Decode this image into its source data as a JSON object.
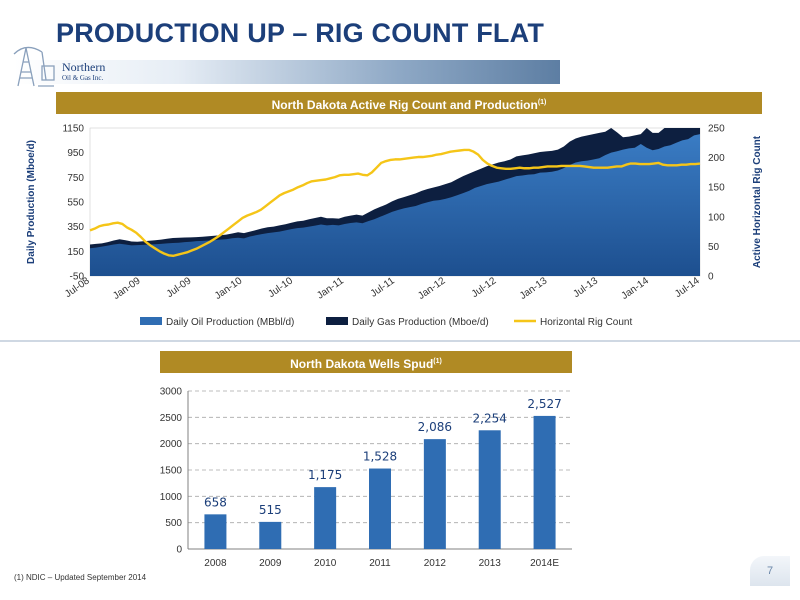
{
  "slide": {
    "title": "PRODUCTION UP – RIG COUNT FLAT",
    "logo_name": "Northern",
    "logo_sub": "Oil & Gas Inc.",
    "footnote": "(1)   NDIC – Updated September 2014",
    "page_number": "7",
    "colors": {
      "title": "#1c3f7a",
      "section_bar": "#b08a24",
      "oil": "#2f6db3",
      "gas": "#0d1f40",
      "rig": "#f5c518",
      "bar": "#2f6db3"
    }
  },
  "chart_data": [
    {
      "type": "area",
      "title": "North Dakota Active Rig Count and Production",
      "title_sup": "(1)",
      "ylabel": "Daily Production (Mboe/d)",
      "y2label": "Active Horizontal Rig Count",
      "ylim": [
        -50,
        1150
      ],
      "yticks": [
        -50,
        150,
        350,
        550,
        750,
        950,
        1150
      ],
      "y2lim": [
        0,
        250
      ],
      "y2ticks": [
        0,
        50,
        100,
        150,
        200,
        250
      ],
      "x_tick_labels": [
        "Jul-08",
        "Jan-09",
        "Jul-09",
        "Jan-10",
        "Jul-10",
        "Jan-11",
        "Jul-11",
        "Jan-12",
        "Jul-12",
        "Jan-13",
        "Jul-13",
        "Jan-14",
        "Jul-14"
      ],
      "legend": [
        "Daily Oil Production (MBbl/d)",
        "Daily Gas Production (Mboe/d)",
        "Horizontal Rig Count"
      ],
      "series": [
        {
          "name": "Daily Oil Production (MBbl/d)",
          "values": [
            175,
            180,
            188,
            196,
            205,
            212,
            205,
            198,
            200,
            202,
            205,
            207,
            210,
            215,
            218,
            220,
            225,
            228,
            233,
            235,
            238,
            241,
            245,
            248,
            256,
            260,
            255,
            270,
            280,
            290,
            298,
            304,
            310,
            320,
            330,
            338,
            342,
            350,
            358,
            368,
            360,
            365,
            360,
            372,
            380,
            385,
            378,
            395,
            410,
            430,
            450,
            470,
            485,
            498,
            508,
            518,
            535,
            548,
            560,
            565,
            575,
            588,
            605,
            622,
            640,
            665,
            680,
            695,
            705,
            715,
            730,
            745,
            760,
            765,
            772,
            775,
            788,
            790,
            795,
            805,
            825,
            850,
            870,
            880,
            885,
            895,
            905,
            930,
            950,
            962,
            975,
            985,
            990,
            1020,
            990,
            970,
            980,
            1000,
            1010,
            1030,
            1050,
            1060,
            1090,
            1100
          ]
        },
        {
          "name": "Daily Gas Production (Mboe/d)",
          "values": [
            205,
            210,
            215,
            225,
            238,
            248,
            240,
            230,
            228,
            232,
            236,
            240,
            245,
            252,
            258,
            260,
            262,
            263,
            265,
            268,
            272,
            276,
            280,
            285,
            295,
            305,
            298,
            310,
            322,
            335,
            345,
            350,
            360,
            370,
            382,
            393,
            398,
            410,
            420,
            430,
            418,
            418,
            415,
            430,
            440,
            448,
            440,
            465,
            490,
            510,
            530,
            555,
            575,
            590,
            605,
            620,
            640,
            655,
            668,
            680,
            695,
            710,
            735,
            760,
            780,
            800,
            820,
            840,
            855,
            870,
            880,
            895,
            920,
            928,
            935,
            945,
            955,
            960,
            965,
            975,
            1000,
            1040,
            1065,
            1080,
            1090,
            1100,
            1110,
            1120,
            1150,
            1115,
            1075,
            1080,
            1090,
            1100,
            1150,
            1110,
            1110,
            1150,
            1150,
            1150,
            1150,
            1150,
            1150,
            1150
          ]
        },
        {
          "name": "Horizontal Rig Count",
          "values": [
            77,
            80,
            84,
            86,
            87,
            89,
            90,
            88,
            82,
            78,
            73,
            66,
            58,
            52,
            47,
            42,
            38,
            35,
            34,
            36,
            38,
            40,
            43,
            46,
            50,
            54,
            58,
            63,
            68,
            74,
            80,
            86,
            92,
            98,
            102,
            105,
            108,
            112,
            118,
            124,
            130,
            136,
            140,
            143,
            146,
            150,
            153,
            157,
            160,
            161,
            162,
            163,
            165,
            167,
            170,
            171,
            171,
            172,
            173,
            171,
            170,
            175,
            183,
            191,
            194,
            196,
            197,
            197,
            198,
            199,
            200,
            201,
            201,
            202,
            203,
            205,
            206,
            208,
            210,
            211,
            212,
            213,
            213,
            210,
            205,
            196,
            190,
            186,
            183,
            182,
            181,
            181,
            182,
            183,
            182,
            182,
            183,
            183,
            184,
            185,
            185,
            185,
            186,
            186,
            186,
            186,
            186,
            185,
            184,
            183,
            183,
            183,
            183,
            184,
            185,
            185,
            188,
            190,
            190,
            189,
            189,
            189,
            190,
            191,
            188,
            187,
            187,
            187,
            188,
            188,
            189,
            189,
            190
          ]
        }
      ]
    },
    {
      "type": "bar",
      "title": "North Dakota Wells Spud",
      "title_sup": "(1)",
      "categories": [
        "2008",
        "2009",
        "2010",
        "2011",
        "2012",
        "2013",
        "2014E"
      ],
      "values": [
        658,
        515,
        1175,
        1528,
        2086,
        2254,
        2527
      ],
      "value_labels": [
        "658",
        "515",
        "1,175",
        "1,528",
        "2,086",
        "2,254",
        "2,527"
      ],
      "ylim": [
        0,
        3000
      ],
      "yticks": [
        0,
        500,
        1000,
        1500,
        2000,
        2500,
        3000
      ],
      "grid": true
    }
  ]
}
